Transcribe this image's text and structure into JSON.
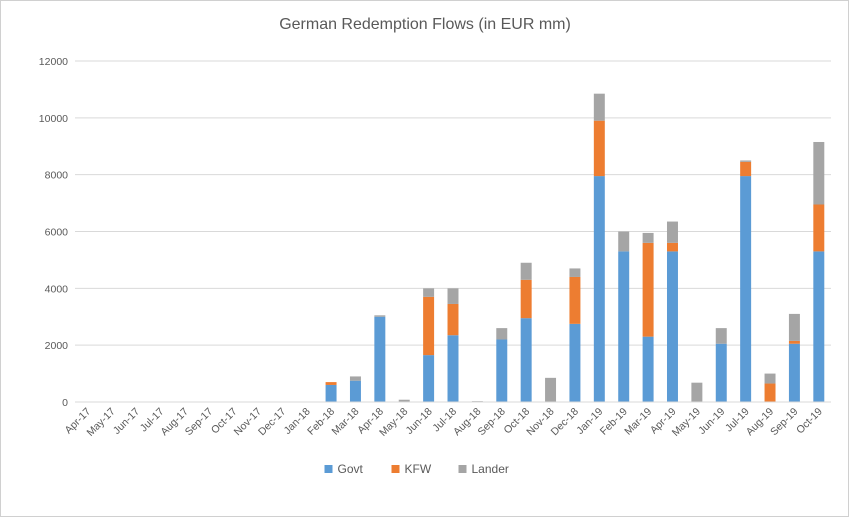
{
  "chart_data": {
    "type": "bar",
    "stacked": true,
    "title": "German Redemption Flows (in EUR mm)",
    "xlabel": "",
    "ylabel": "",
    "ylim": [
      0,
      12000
    ],
    "yticks": [
      0,
      2000,
      4000,
      6000,
      8000,
      10000,
      12000
    ],
    "grid": true,
    "legend_position": "bottom",
    "categories": [
      "Apr-17",
      "May-17",
      "Jun-17",
      "Jul-17",
      "Aug-17",
      "Sep-17",
      "Oct-17",
      "Nov-17",
      "Dec-17",
      "Jan-18",
      "Feb-18",
      "Mar-18",
      "Apr-18",
      "May-18",
      "Jun-18",
      "Jul-18",
      "Aug-18",
      "Sep-18",
      "Oct-18",
      "Nov-18",
      "Dec-18",
      "Jan-19",
      "Feb-19",
      "Mar-19",
      "Apr-19",
      "May-19",
      "Jun-19",
      "Jul-19",
      "Aug-19",
      "Sep-19",
      "Oct-19"
    ],
    "series": [
      {
        "name": "Govt",
        "color": "#5B9BD5",
        "values": [
          0,
          0,
          0,
          0,
          0,
          0,
          0,
          0,
          0,
          0,
          600,
          750,
          3000,
          0,
          1650,
          2350,
          0,
          2200,
          2950,
          0,
          2750,
          7950,
          5300,
          2300,
          5300,
          0,
          2050,
          7950,
          0,
          2050,
          5300
        ]
      },
      {
        "name": "KFW",
        "color": "#ED7D31",
        "values": [
          0,
          0,
          0,
          0,
          0,
          0,
          0,
          0,
          0,
          0,
          100,
          0,
          0,
          0,
          2050,
          1100,
          0,
          0,
          1350,
          0,
          1650,
          1950,
          0,
          3300,
          300,
          0,
          0,
          500,
          650,
          100,
          1650
        ]
      },
      {
        "name": "Lander",
        "color": "#A5A5A5",
        "values": [
          0,
          0,
          0,
          0,
          0,
          0,
          0,
          0,
          0,
          0,
          0,
          150,
          50,
          80,
          300,
          550,
          30,
          400,
          600,
          850,
          300,
          950,
          700,
          350,
          750,
          680,
          550,
          50,
          350,
          950,
          2200
        ]
      }
    ]
  }
}
